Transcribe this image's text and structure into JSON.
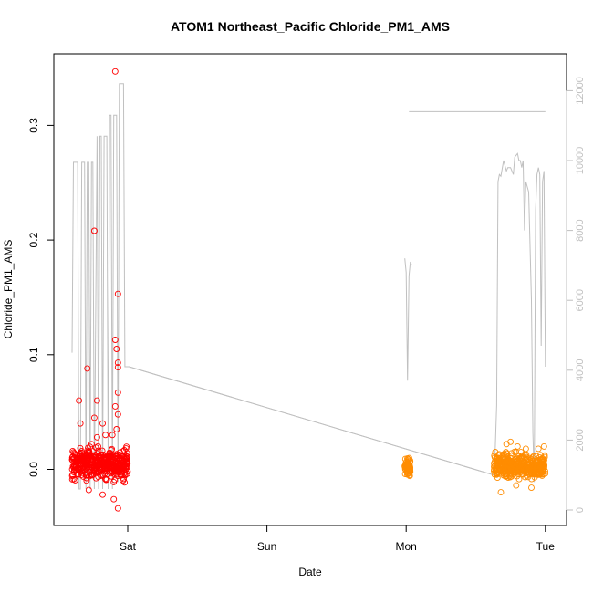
{
  "chart_data": {
    "type": "scatter",
    "title": "ATOM1 Northeast_Pacific Chloride_PM1_AMS",
    "xlabel": "Date",
    "ylabel": "Chloride_PM1_AMS",
    "x_ticks": [
      "Sat",
      "Sun",
      "Mon",
      "Tue"
    ],
    "xlim_days": [
      -0.45,
      3.1
    ],
    "ylim": [
      -0.05,
      0.37
    ],
    "y_ticks": [
      0.0,
      0.1,
      0.2,
      0.3
    ],
    "y_tick_labels": [
      "0.0",
      "0.1",
      "0.2",
      "0.3"
    ],
    "secondary_ylim": [
      0,
      12500
    ],
    "secondary_y_ticks": [
      0,
      2000,
      4000,
      6000,
      8000,
      10000,
      12000
    ],
    "secondary_y_tick_labels": [
      "0",
      "2000",
      "4000",
      "6000",
      "8000",
      "10000",
      "12000"
    ],
    "colors": {
      "series_1": "#ff0000",
      "series_2": "#ff8c00",
      "secondary_line": "#c0c0c0",
      "axis": "#000000",
      "secondary_axis": "#bfbfbf"
    },
    "series": [
      {
        "color": "#ff0000",
        "marker": "open-circle",
        "x_range_days": [
          -0.4,
          0.0
        ],
        "typical_y_range": [
          -0.012,
          0.022
        ],
        "outliers": [
          {
            "x": -0.28,
            "y": -0.018
          },
          {
            "x": -0.18,
            "y": -0.022
          },
          {
            "x": -0.1,
            "y": -0.026
          },
          {
            "x": -0.07,
            "y": -0.034
          },
          {
            "x": -0.35,
            "y": 0.06
          },
          {
            "x": -0.34,
            "y": 0.04
          },
          {
            "x": -0.29,
            "y": 0.088
          },
          {
            "x": -0.24,
            "y": 0.208
          },
          {
            "x": -0.24,
            "y": 0.045
          },
          {
            "x": -0.22,
            "y": 0.06
          },
          {
            "x": -0.22,
            "y": 0.028
          },
          {
            "x": -0.18,
            "y": 0.04
          },
          {
            "x": -0.16,
            "y": 0.03
          },
          {
            "x": -0.11,
            "y": 0.03
          },
          {
            "x": -0.09,
            "y": 0.055
          },
          {
            "x": -0.08,
            "y": 0.035
          },
          {
            "x": -0.09,
            "y": 0.113
          },
          {
            "x": -0.08,
            "y": 0.105
          },
          {
            "x": -0.07,
            "y": 0.093
          },
          {
            "x": -0.07,
            "y": 0.089
          },
          {
            "x": -0.07,
            "y": 0.067
          },
          {
            "x": -0.07,
            "y": 0.048
          },
          {
            "x": -0.07,
            "y": 0.153
          },
          {
            "x": -0.09,
            "y": 0.347
          }
        ]
      },
      {
        "color": "#ff8c00",
        "marker": "open-circle",
        "x_range_days": [
          1.99,
          2.03
        ],
        "typical_y_range": [
          -0.008,
          0.011
        ],
        "outliers": []
      },
      {
        "color": "#ff8c00",
        "marker": "open-circle",
        "x_range_days": [
          2.63,
          3.0
        ],
        "typical_y_range": [
          -0.01,
          0.016
        ],
        "outliers": [
          {
            "x": 2.68,
            "y": -0.02
          },
          {
            "x": 2.72,
            "y": 0.022
          },
          {
            "x": 2.75,
            "y": 0.024
          },
          {
            "x": 2.8,
            "y": 0.02
          },
          {
            "x": 2.86,
            "y": 0.018
          },
          {
            "x": 2.95,
            "y": 0.018
          },
          {
            "x": 2.99,
            "y": 0.02
          },
          {
            "x": 2.9,
            "y": -0.016
          },
          {
            "x": 2.79,
            "y": -0.014
          }
        ]
      },
      {
        "role": "secondary-axis line",
        "color": "#c0c0c0",
        "x": [
          -0.4,
          -0.39,
          -0.37,
          -0.36,
          -0.35,
          -0.34,
          -0.33,
          -0.31,
          -0.3,
          -0.29,
          -0.28,
          -0.27,
          -0.26,
          -0.25,
          -0.24,
          -0.22,
          -0.21,
          -0.2,
          -0.19,
          -0.18,
          -0.17,
          -0.15,
          -0.14,
          -0.13,
          -0.12,
          -0.11,
          -0.1,
          -0.09,
          -0.08,
          -0.07,
          -0.06,
          -0.05,
          -0.04,
          -0.03,
          -0.02,
          -0.01,
          0.0,
          0.01,
          2.63,
          2.64,
          2.65,
          2.66,
          2.67,
          2.68,
          2.7,
          2.72,
          2.73,
          2.75,
          2.77,
          2.78,
          2.8,
          2.81,
          2.82,
          2.83,
          2.84,
          2.85,
          2.86,
          2.88,
          2.9,
          2.91,
          2.92,
          2.93,
          2.94,
          2.95,
          2.96,
          2.97,
          2.98,
          2.99,
          3.0
        ],
        "y": [
          4500,
          9950,
          9950,
          9950,
          600,
          600,
          9950,
          9950,
          600,
          9950,
          9950,
          600,
          9950,
          9950,
          600,
          10700,
          600,
          10700,
          10700,
          600,
          10700,
          10700,
          600,
          11300,
          11300,
          600,
          11300,
          11300,
          11300,
          800,
          12200,
          12200,
          12200,
          12200,
          4100,
          4100,
          4100,
          4100,
          1000,
          1800,
          3000,
          9400,
          9600,
          9550,
          10000,
          9700,
          9800,
          9800,
          9600,
          10100,
          10200,
          10000,
          10000,
          9800,
          10000,
          8000,
          9400,
          9100,
          6000,
          2200,
          800,
          8600,
          9600,
          9800,
          9600,
          4700,
          9400,
          9700,
          4100
        ],
        "note_segments": [
          {
            "x": [
              0.01,
              2.63
            ],
            "y": [
              4100,
              1000
            ]
          },
          {
            "x": [
              1.99,
              2.0,
              2.01,
              2.02,
              2.03,
              2.04
            ],
            "y": [
              7200,
              6800,
              3700,
              6700,
              7100,
              7000
            ]
          },
          {
            "x": [
              2.02,
              3.0
            ],
            "y": [
              11400,
              11400
            ]
          }
        ]
      }
    ]
  }
}
